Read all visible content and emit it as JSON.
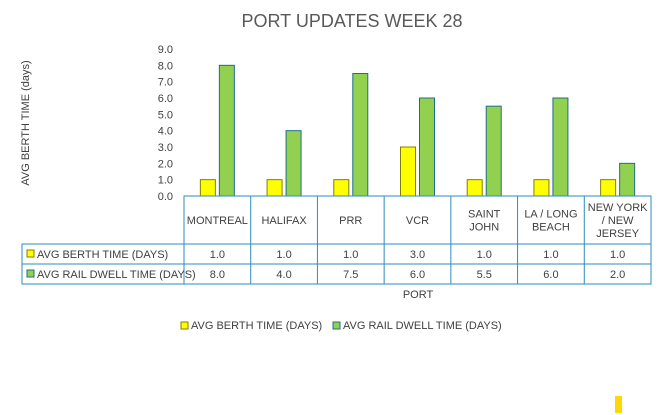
{
  "chart_data": {
    "type": "bar",
    "title": "PORT UPDATES WEEK 28",
    "xlabel": "PORT",
    "ylabel": "AVG BERTH TIME (days)",
    "ylim": [
      0,
      9
    ],
    "yticks": [
      "0.0",
      "1.0",
      "2.0",
      "3.0",
      "4.0",
      "5.0",
      "6.0",
      "7.0",
      "8.0",
      "9.0"
    ],
    "categories": [
      "MONTREAL",
      "HALIFAX",
      "PRR",
      "VCR",
      "SAINT JOHN",
      "LA / LONG BEACH",
      "NEW YORK / NEW JERSEY"
    ],
    "series": [
      {
        "name": "AVG BERTH TIME (DAYS)",
        "values": [
          1.0,
          1.0,
          1.0,
          3.0,
          1.0,
          1.0,
          1.0
        ],
        "color": "#FFFF00",
        "stroke": "#7F7F00"
      },
      {
        "name": "AVG RAIL DWELL TIME (DAYS)",
        "values": [
          8.0,
          4.0,
          7.5,
          6.0,
          5.5,
          6.0,
          2.0
        ],
        "color": "#92D050",
        "stroke": "#1F6F8B"
      }
    ],
    "data_table": true,
    "legend_position": "bottom",
    "grid": false
  }
}
